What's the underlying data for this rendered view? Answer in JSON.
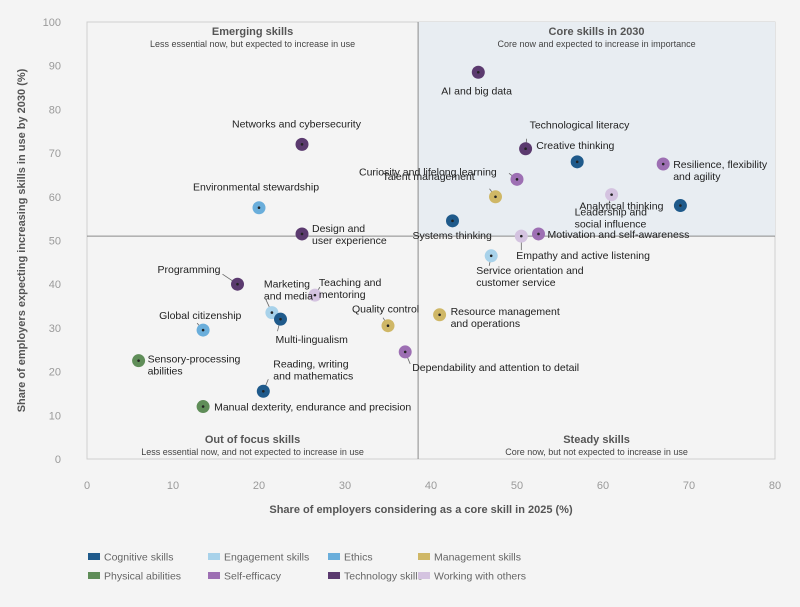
{
  "chart_data": {
    "type": "scatter",
    "xlabel": "Share of employers considering as a core skill in 2025 (%)",
    "ylabel": "Share of employers expecting increasing skills in use by 2030 (%)",
    "xlim": [
      0,
      80
    ],
    "ylim": [
      0,
      100
    ],
    "xticks": [
      "0",
      "10",
      "20",
      "30",
      "40",
      "50",
      "60",
      "70",
      "80"
    ],
    "yticks": [
      "0",
      "10",
      "20",
      "30",
      "40",
      "50",
      "60",
      "70",
      "80",
      "90",
      "100"
    ],
    "quadrant_split": {
      "x": 38.5,
      "y": 51
    },
    "grid": false,
    "legend_position": "bottom",
    "quadrants": [
      {
        "title": "Emerging skills",
        "subtitle": "Less essential now, but expected to increase in use",
        "position": "top-left"
      },
      {
        "title": "Core skills in 2030",
        "subtitle": "Core now and expected to increase in importance",
        "position": "top-right"
      },
      {
        "title": "Out of focus skills",
        "subtitle": "Less essential now, and not expected to increase in use",
        "position": "bottom-left"
      },
      {
        "title": "Steady skills",
        "subtitle": "Core now, but not expected to increase in use",
        "position": "bottom-right"
      }
    ],
    "categories": [
      {
        "name": "Cognitive skills",
        "color": "#1f5a8b"
      },
      {
        "name": "Engagement skills",
        "color": "#a8d2ea"
      },
      {
        "name": "Ethics",
        "color": "#6aaedb"
      },
      {
        "name": "Management skills",
        "color": "#cfb766"
      },
      {
        "name": "Physical abilities",
        "color": "#5f8d58"
      },
      {
        "name": "Self-efficacy",
        "color": "#9d6fb3"
      },
      {
        "name": "Technology skills",
        "color": "#5b3a6f"
      },
      {
        "name": "Working with others",
        "color": "#d4c3e0"
      }
    ],
    "points": [
      {
        "label": [
          "AI and big data"
        ],
        "category": "Technology skills",
        "x": 45.5,
        "y": 88.5
      },
      {
        "label": [
          "Technological literacy"
        ],
        "category": "Technology skills",
        "x": 51,
        "y": 71
      },
      {
        "label": [
          "Networks and cybersecurity"
        ],
        "category": "Technology skills",
        "x": 25,
        "y": 72
      },
      {
        "label": [
          "Creative thinking"
        ],
        "category": "Cognitive skills",
        "x": 57,
        "y": 68
      },
      {
        "label": [
          "Resilience, flexibility",
          "and agility"
        ],
        "category": "Self-efficacy",
        "x": 67,
        "y": 67.5
      },
      {
        "label": [
          "Curiosity and lifelong learning"
        ],
        "category": "Self-efficacy",
        "x": 50,
        "y": 64
      },
      {
        "label": [
          "Talent management"
        ],
        "category": "Management skills",
        "x": 47.5,
        "y": 60
      },
      {
        "label": [
          "Leadership and",
          "social influence"
        ],
        "category": "Working with others",
        "x": 61,
        "y": 60.5
      },
      {
        "label": [
          "Analytical thinking"
        ],
        "category": "Cognitive skills",
        "x": 69,
        "y": 58
      },
      {
        "label": [
          "Environmental stewardship"
        ],
        "category": "Ethics",
        "x": 20,
        "y": 57.5
      },
      {
        "label": [
          "Systems thinking"
        ],
        "category": "Cognitive skills",
        "x": 42.5,
        "y": 54.5
      },
      {
        "label": [
          "Design and",
          "user experience"
        ],
        "category": "Technology skills",
        "x": 25,
        "y": 51.5
      },
      {
        "label": [
          "Motivation and self-awareness"
        ],
        "category": "Self-efficacy",
        "x": 52.5,
        "y": 51.5
      },
      {
        "label": [
          "Empathy and active listening"
        ],
        "category": "Working with others",
        "x": 50.5,
        "y": 51
      },
      {
        "label": [
          "Service orientation and",
          "customer service"
        ],
        "category": "Engagement skills",
        "x": 47,
        "y": 46.5
      },
      {
        "label": [
          "Programming"
        ],
        "category": "Technology skills",
        "x": 17.5,
        "y": 40
      },
      {
        "label": [
          "Marketing",
          "and media"
        ],
        "category": "Engagement skills",
        "x": 21.5,
        "y": 33.5
      },
      {
        "label": [
          "Teaching and",
          "mentoring"
        ],
        "category": "Working with others",
        "x": 26.5,
        "y": 37.5
      },
      {
        "label": [
          "Multi-lingualism"
        ],
        "category": "Cognitive skills",
        "x": 22.5,
        "y": 32
      },
      {
        "label": [
          "Global citizenship"
        ],
        "category": "Ethics",
        "x": 13.5,
        "y": 29.5
      },
      {
        "label": [
          "Quality control"
        ],
        "category": "Management skills",
        "x": 35,
        "y": 30.5
      },
      {
        "label": [
          "Resource management",
          "and operations"
        ],
        "category": "Management skills",
        "x": 41,
        "y": 33
      },
      {
        "label": [
          "Dependability and attention to detail"
        ],
        "category": "Self-efficacy",
        "x": 37,
        "y": 24.5
      },
      {
        "label": [
          "Sensory-processing",
          "abilities"
        ],
        "category": "Physical abilities",
        "x": 6,
        "y": 22.5
      },
      {
        "label": [
          "Reading, writing",
          "and mathematics"
        ],
        "category": "Cognitive skills",
        "x": 20.5,
        "y": 15.5
      },
      {
        "label": [
          "Manual dexterity, endurance and precision"
        ],
        "category": "Physical abilities",
        "x": 13.5,
        "y": 12
      }
    ]
  }
}
